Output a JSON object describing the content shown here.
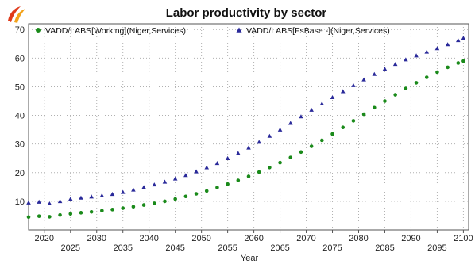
{
  "colors": {
    "series_working": "#1a8a1a",
    "series_fsbase": "#2a2a9a",
    "grid": "#b0b0b0",
    "logo_red": "#e03a1a",
    "logo_orange": "#f2a21a"
  },
  "logo": {
    "icon": "swoosh-logo-icon"
  },
  "chart_data": {
    "type": "scatter",
    "title": "Labor productivity by sector",
    "xlabel": "Year",
    "ylabel": "",
    "xlim": [
      2017,
      2101
    ],
    "ylim": [
      0,
      72
    ],
    "yticks": [
      10,
      20,
      30,
      40,
      50,
      60,
      70
    ],
    "xticks_top_row": [
      2020,
      2030,
      2040,
      2050,
      2060,
      2070,
      2080,
      2090,
      2100
    ],
    "xticks_bottom_row": [
      2025,
      2035,
      2045,
      2055,
      2065,
      2075,
      2085,
      2095
    ],
    "grid": "dotted",
    "legend": "top",
    "series": [
      {
        "name": "VADD/LABS[Working](Niger,Services)",
        "marker": "circle",
        "color": "#1a8a1a",
        "x": [
          2017,
          2019,
          2021,
          2023,
          2025,
          2027,
          2029,
          2031,
          2033,
          2035,
          2037,
          2039,
          2041,
          2043,
          2045,
          2047,
          2049,
          2051,
          2053,
          2055,
          2057,
          2059,
          2061,
          2063,
          2065,
          2067,
          2069,
          2071,
          2073,
          2075,
          2077,
          2079,
          2081,
          2083,
          2085,
          2087,
          2089,
          2091,
          2093,
          2095,
          2097,
          2099,
          2100
        ],
        "values": [
          4.5,
          4.8,
          4.6,
          5.2,
          5.6,
          6.0,
          6.3,
          6.7,
          7.1,
          7.6,
          8.1,
          8.7,
          9.3,
          10.0,
          10.8,
          11.7,
          12.6,
          13.6,
          14.8,
          16.0,
          17.3,
          18.7,
          20.2,
          21.8,
          23.5,
          25.3,
          27.2,
          29.2,
          31.3,
          33.5,
          35.8,
          38.1,
          40.4,
          42.7,
          45.0,
          47.2,
          49.4,
          51.4,
          53.3,
          55.1,
          56.8,
          58.3,
          59.0
        ]
      },
      {
        "name": "VADD/LABS[FsBase -](Niger,Services)",
        "marker": "triangle",
        "color": "#2a2a9a",
        "x": [
          2017,
          2019,
          2021,
          2023,
          2025,
          2027,
          2029,
          2031,
          2033,
          2035,
          2037,
          2039,
          2041,
          2043,
          2045,
          2047,
          2049,
          2051,
          2053,
          2055,
          2057,
          2059,
          2061,
          2063,
          2065,
          2067,
          2069,
          2071,
          2073,
          2075,
          2077,
          2079,
          2081,
          2083,
          2085,
          2087,
          2089,
          2091,
          2093,
          2095,
          2097,
          2099,
          2100
        ],
        "values": [
          9.5,
          9.8,
          9.2,
          10.0,
          10.8,
          11.2,
          11.6,
          12.0,
          12.5,
          13.2,
          14.0,
          14.9,
          15.8,
          16.8,
          17.9,
          19.1,
          20.4,
          21.8,
          23.3,
          25.0,
          26.8,
          28.7,
          30.7,
          32.8,
          35.0,
          37.3,
          39.6,
          41.9,
          44.1,
          46.3,
          48.4,
          50.5,
          52.5,
          54.4,
          56.2,
          57.9,
          59.5,
          60.9,
          62.2,
          63.4,
          64.8,
          66.2,
          67.0
        ]
      }
    ]
  }
}
